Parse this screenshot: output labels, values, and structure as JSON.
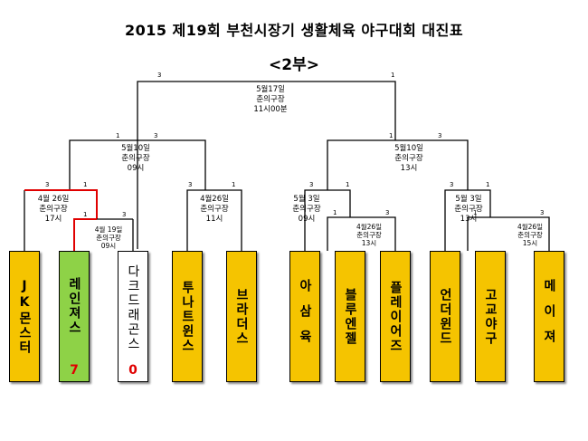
{
  "title": "2015 제19회 부천시장기 생활체육 야구대회 대진표",
  "subtitle": "<2부>",
  "colors": {
    "winner_line": "#e00000",
    "line": "#000000",
    "team_yellow": "#f5c400",
    "team_green": "#8ed247"
  },
  "teams": [
    {
      "name": "JK몬스터"
    },
    {
      "name": "레인져스",
      "score": "7"
    },
    {
      "name": "다크드래곤스",
      "score": "0"
    },
    {
      "name": "투나트윈스"
    },
    {
      "name": "브라더스"
    },
    {
      "name": "아삼육"
    },
    {
      "name": "블루엔젤"
    },
    {
      "name": "플레이어즈"
    },
    {
      "name": "언더윈드"
    },
    {
      "name": "고교야구"
    },
    {
      "name": "메이져"
    }
  ],
  "matches": {
    "final": {
      "date": "5월17일",
      "venue": "춘의구장",
      "time": "11시00분",
      "left_score": "3",
      "right_score": "1"
    },
    "semi_left": {
      "date": "5월10일",
      "venue": "춘의구장",
      "time": "09시",
      "left_score": "1",
      "right_score": "3"
    },
    "semi_right": {
      "date": "5월10일",
      "venue": "춘의구장",
      "time": "13시",
      "left_score": "1",
      "right_score": "3"
    },
    "qf1": {
      "date": "4월 26일",
      "venue": "춘의구장",
      "time": "17시",
      "left_score": "3",
      "right_score": "1"
    },
    "qf2": {
      "date": "4월26일",
      "venue": "춘의구장",
      "time": "11시",
      "left_score": "3",
      "right_score": "1"
    },
    "qf3": {
      "date": "5월 3일",
      "venue": "춘의구장",
      "time": "09시",
      "left_score": "3",
      "right_score": "1"
    },
    "qf4": {
      "date": "5월 3일",
      "venue": "춘의구장",
      "time": "13시",
      "left_score": "3",
      "right_score": "1"
    },
    "r1_a": {
      "date": "4월 19일",
      "venue": "춘의구장",
      "time": "09시",
      "left_score": "1",
      "right_score": "3"
    },
    "r1_b": {
      "date": "4월26일",
      "venue": "춘의구장",
      "time": "13시",
      "left_score": "1",
      "right_score": "3"
    },
    "r1_c": {
      "date": "4월26일",
      "venue": "춘의구장",
      "time": "15시",
      "left_score": "1",
      "right_score": "3"
    }
  }
}
